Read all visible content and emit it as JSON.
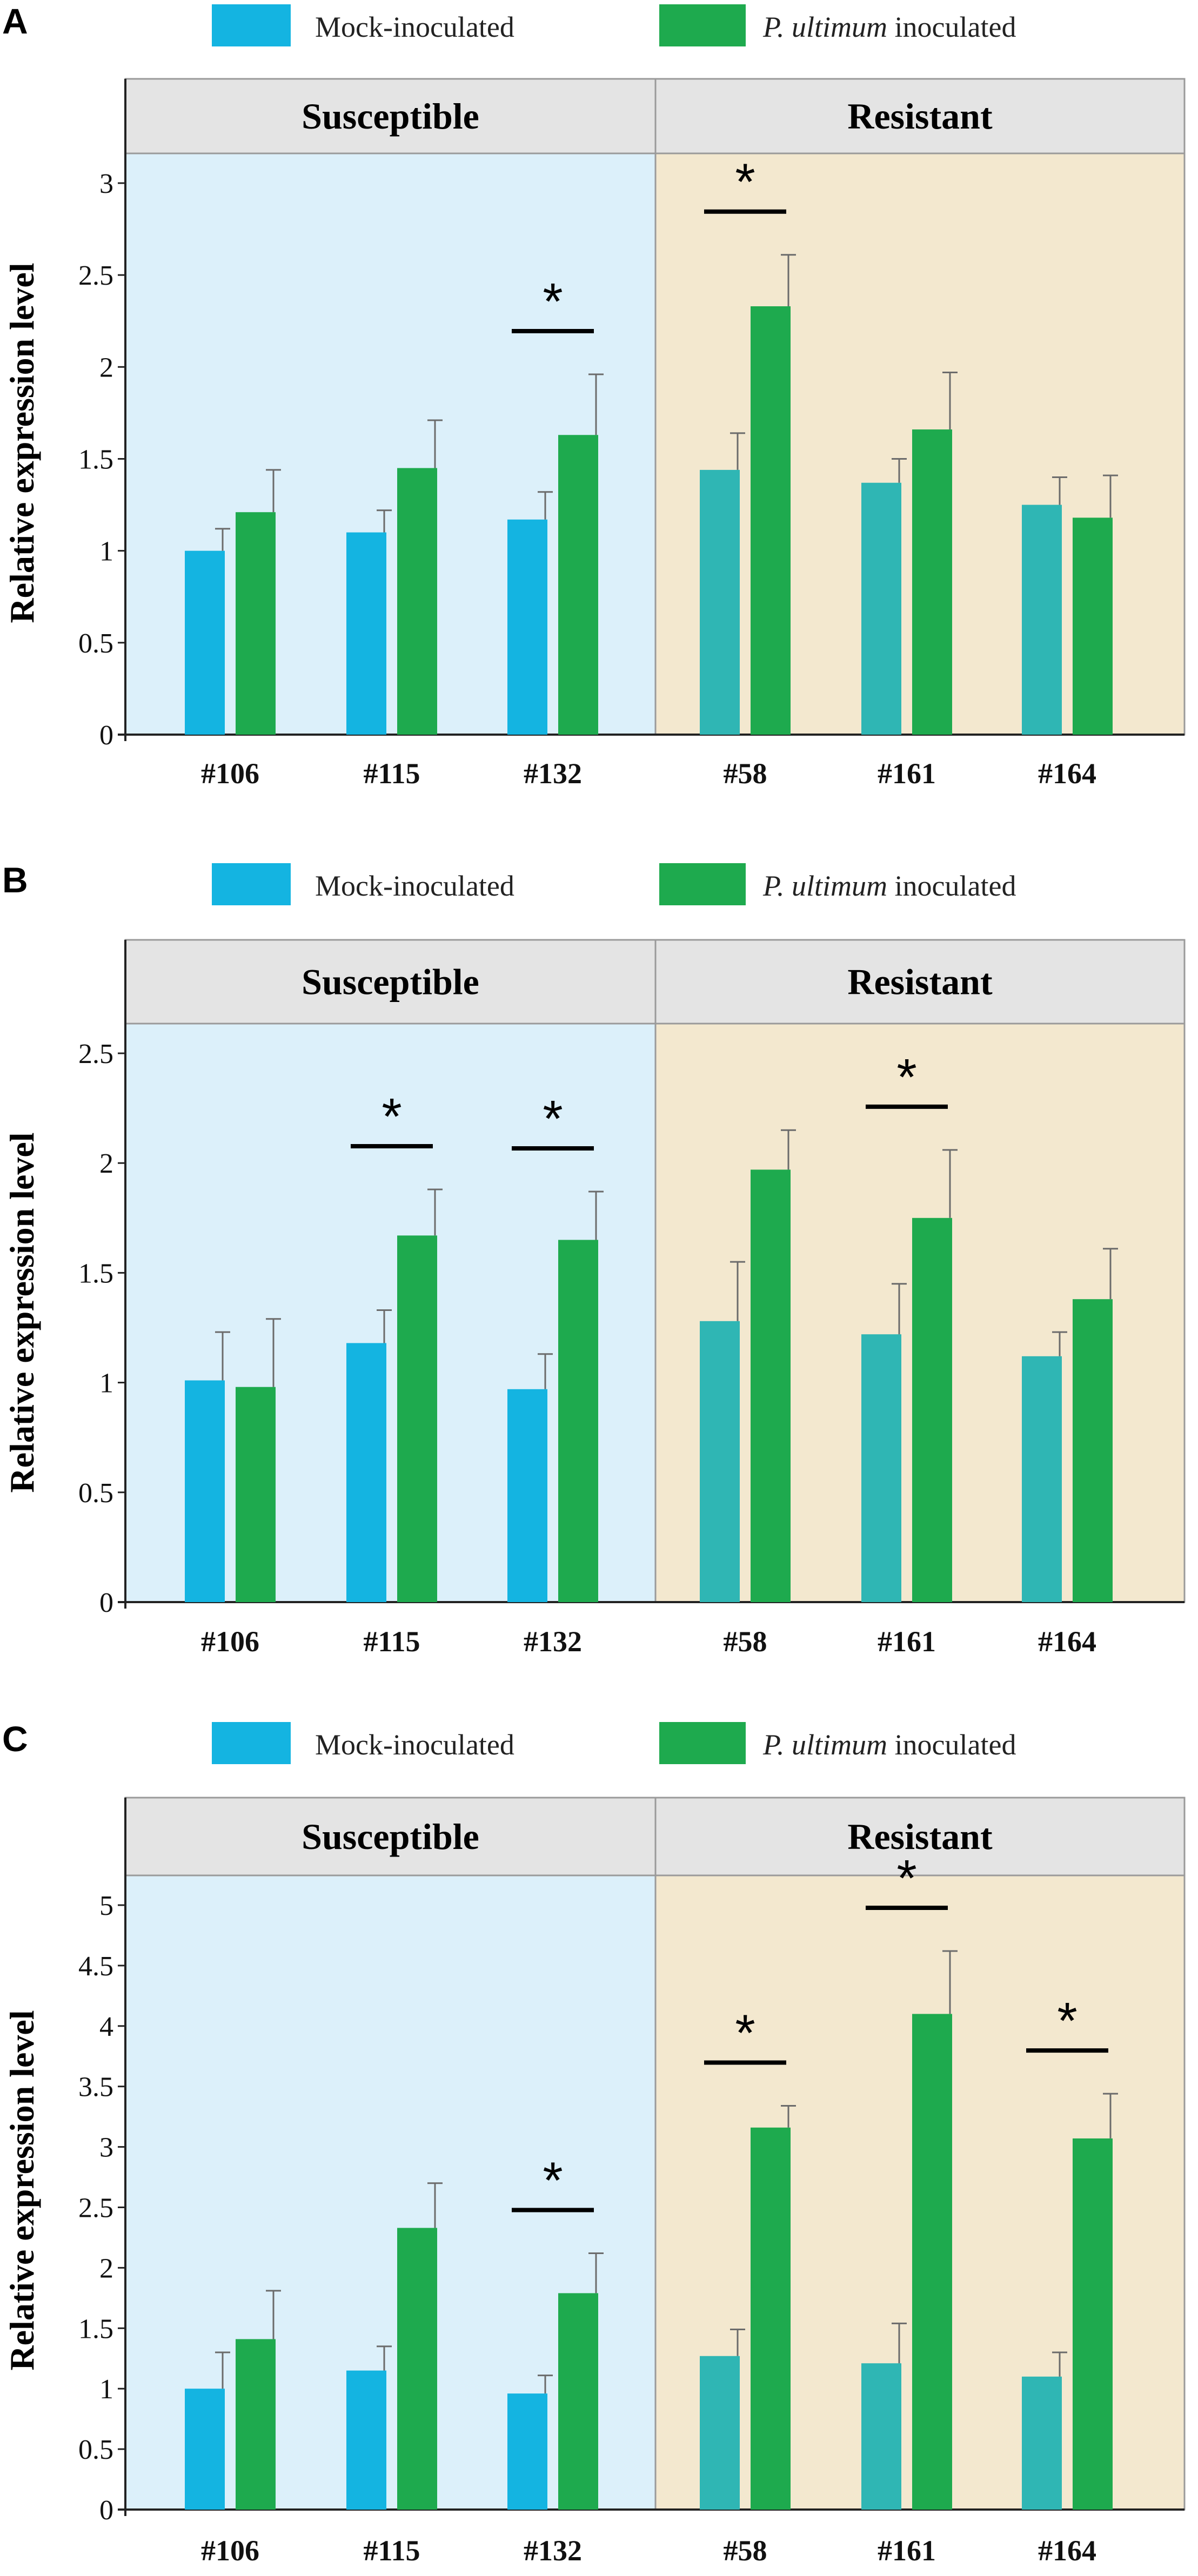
{
  "colors": {
    "mock_susceptible": "#14b4e1",
    "mock_resistant": "#2fb6b4",
    "inoculated": "#1eaa4e",
    "susceptible_bg": "#dcf0fa",
    "resistant_bg": "#f3e8cf",
    "header_bg": "#e4e4e4",
    "error_bar": "#6b6b6b"
  },
  "chart_data": [
    {
      "panel": "A",
      "type": "bar",
      "legend": {
        "series1": "Mock-inoculated",
        "series2_italic": "P. ultimum",
        "series2_rest": " inoculated"
      },
      "groups": [
        "Susceptible",
        "Resistant"
      ],
      "group_members": [
        [
          "#106",
          "#115",
          "#132"
        ],
        [
          "#58",
          "#161",
          "#164"
        ]
      ],
      "categories": [
        "#106",
        "#115",
        "#132",
        "#58",
        "#161",
        "#164"
      ],
      "ylabel": "Relative expression level",
      "ylim": [
        0,
        3
      ],
      "yticks": [
        "0",
        "0.5",
        "1",
        "1.5",
        "2",
        "2.5",
        "3"
      ],
      "series": [
        {
          "name": "Mock-inoculated",
          "values": [
            1.0,
            1.1,
            1.17,
            1.44,
            1.37,
            1.25
          ],
          "errors": [
            0.12,
            0.12,
            0.15,
            0.2,
            0.13,
            0.15
          ]
        },
        {
          "name": "P. ultimum inoculated",
          "values": [
            1.21,
            1.45,
            1.63,
            2.33,
            1.66,
            1.18
          ],
          "errors": [
            0.23,
            0.26,
            0.33,
            0.28,
            0.31,
            0.23
          ]
        }
      ],
      "significant": [
        false,
        false,
        true,
        true,
        false,
        false
      ],
      "star": "*"
    },
    {
      "panel": "B",
      "type": "bar",
      "legend": {
        "series1": "Mock-inoculated",
        "series2_italic": "P. ultimum",
        "series2_rest": " inoculated"
      },
      "groups": [
        "Susceptible",
        "Resistant"
      ],
      "group_members": [
        [
          "#106",
          "#115",
          "#132"
        ],
        [
          "#58",
          "#161",
          "#164"
        ]
      ],
      "categories": [
        "#106",
        "#115",
        "#132",
        "#58",
        "#161",
        "#164"
      ],
      "ylabel": "Relative expression level",
      "ylim": [
        0,
        2.5
      ],
      "yticks": [
        "0",
        "0.5",
        "1",
        "1.5",
        "2",
        "2.5"
      ],
      "series": [
        {
          "name": "Mock-inoculated",
          "values": [
            1.01,
            1.18,
            0.97,
            1.28,
            1.22,
            1.12
          ],
          "errors": [
            0.22,
            0.15,
            0.16,
            0.27,
            0.23,
            0.11
          ]
        },
        {
          "name": "P. ultimum inoculated",
          "values": [
            0.98,
            1.67,
            1.65,
            1.97,
            1.75,
            1.38
          ],
          "errors": [
            0.31,
            0.21,
            0.22,
            0.18,
            0.31,
            0.23
          ]
        }
      ],
      "significant": [
        false,
        true,
        true,
        false,
        true,
        false
      ],
      "star": "*"
    },
    {
      "panel": "C",
      "type": "bar",
      "legend": {
        "series1": "Mock-inoculated",
        "series2_italic": "P. ultimum",
        "series2_rest": " inoculated"
      },
      "groups": [
        "Susceptible",
        "Resistant"
      ],
      "group_members": [
        [
          "#106",
          "#115",
          "#132"
        ],
        [
          "#58",
          "#161",
          "#164"
        ]
      ],
      "categories": [
        "#106",
        "#115",
        "#132",
        "#58",
        "#161",
        "#164"
      ],
      "ylabel": "Relative expression level",
      "ylim": [
        0,
        5
      ],
      "yticks": [
        "0",
        "0.5",
        "1",
        "1.5",
        "2",
        "2.5",
        "3",
        "3.5",
        "4",
        "4.5",
        "5"
      ],
      "series": [
        {
          "name": "Mock-inoculated",
          "values": [
            1.0,
            1.15,
            0.96,
            1.27,
            1.21,
            1.1
          ],
          "errors": [
            0.3,
            0.2,
            0.15,
            0.22,
            0.33,
            0.2
          ]
        },
        {
          "name": "P. ultimum inoculated",
          "values": [
            1.41,
            2.33,
            1.79,
            3.16,
            4.1,
            3.07
          ],
          "errors": [
            0.4,
            0.37,
            0.33,
            0.18,
            0.52,
            0.37
          ]
        }
      ],
      "significant": [
        false,
        false,
        true,
        true,
        true,
        true
      ],
      "star": "*"
    }
  ]
}
